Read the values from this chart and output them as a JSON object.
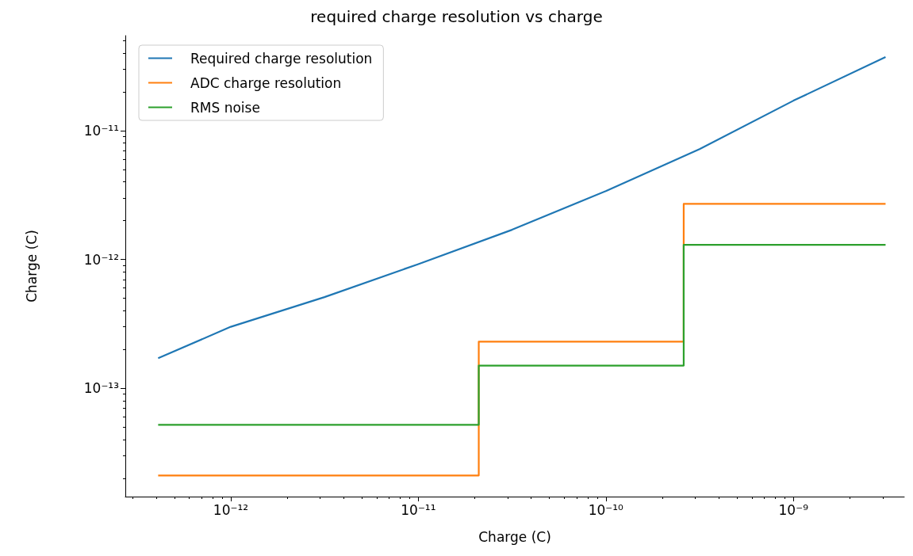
{
  "chart_data": {
    "type": "line",
    "title": "required charge resolution vs charge",
    "xlabel": "Charge (C)",
    "ylabel": "Charge (C)",
    "log": "xy",
    "grid": false,
    "legend": "top left",
    "line_style": "solid",
    "marker": "none",
    "xlim": [
      2.74e-13,
      3.9e-09
    ],
    "ylim": [
      1.44e-14,
      5.47e-11
    ],
    "xticks": [
      {
        "value": 1e-12,
        "label": "10⁻¹²"
      },
      {
        "value": 1e-11,
        "label": "10⁻¹¹"
      },
      {
        "value": 1e-10,
        "label": "10⁻¹⁰"
      },
      {
        "value": 1e-09,
        "label": "10⁻⁹"
      }
    ],
    "yticks": [
      {
        "value": 1e-13,
        "label": "10⁻¹³"
      },
      {
        "value": 1e-12,
        "label": "10⁻¹²"
      },
      {
        "value": 1e-11,
        "label": "10⁻¹¹"
      }
    ],
    "series": [
      {
        "name": "Required charge resolution",
        "color": "#1f77b4",
        "x": [
          4.1e-13,
          1e-12,
          3.16e-12,
          1e-11,
          3.16e-11,
          1e-10,
          3.16e-10,
          1e-09,
          3.1e-09
        ],
        "values": [
          1.71e-13,
          3e-13,
          5.1e-13,
          9.2e-13,
          1.7e-12,
          3.4e-12,
          7.2e-12,
          1.71e-11,
          3.73e-11
        ]
      },
      {
        "name": "ADC charge resolution",
        "color": "#ff7f0e",
        "type": "step",
        "x": [
          4.1e-13,
          2.1e-11,
          2.6e-10,
          3.1e-09
        ],
        "values": [
          2.1e-14,
          2.3e-13,
          2.7e-12,
          2.7e-12
        ]
      },
      {
        "name": "RMS noise",
        "color": "#2ca02c",
        "type": "step",
        "x": [
          4.1e-13,
          2.1e-11,
          2.6e-10,
          3.1e-09
        ],
        "values": [
          5.2e-14,
          1.5e-13,
          1.3e-12,
          1.3e-12
        ]
      }
    ]
  }
}
